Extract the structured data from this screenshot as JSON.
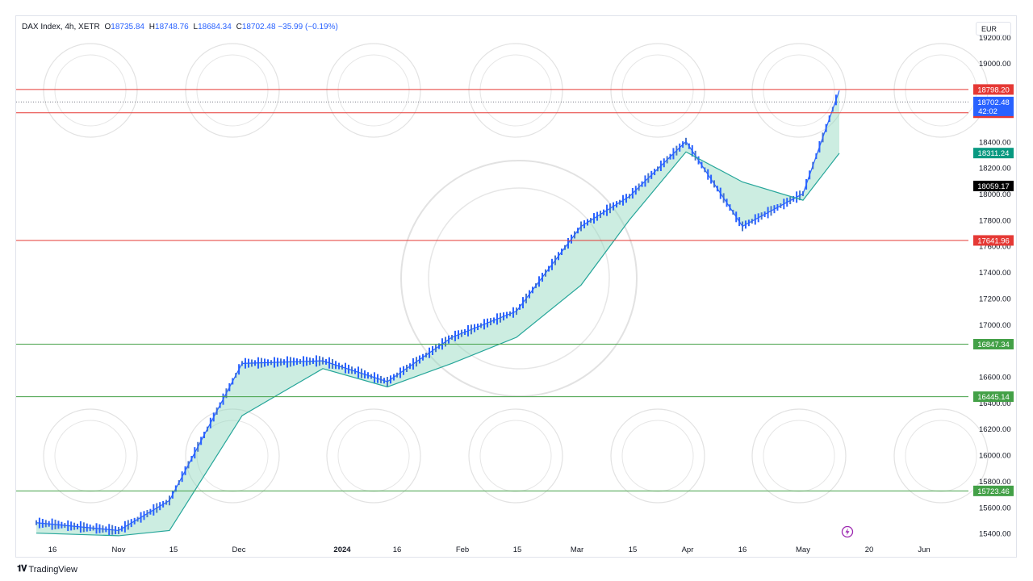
{
  "legend": {
    "symbol": "DAX Index, 4h, XETR",
    "open_label": "O",
    "open": "18735.84",
    "high_label": "H",
    "high": "18748.76",
    "low_label": "L",
    "low": "18684.34",
    "close_label": "C",
    "close": "18702.48",
    "change": "−35.99 (−0.19%)"
  },
  "currency": "EUR",
  "brand": "TradingView",
  "icons": {
    "tv_logo": "tradingview-logo-icon",
    "flash": "flash-icon"
  },
  "colors": {
    "up": "#2962ff",
    "down": "#4a76c8",
    "resistance": "#e53935",
    "support": "#43a047",
    "cloud_green": "#8fd6bd",
    "cloud_red": "#f6a3a3",
    "price_tag": "#2962ff",
    "dark_tag": "#000000",
    "teal_tag": "#089981"
  },
  "chart_data": {
    "type": "line",
    "title": "DAX Index, 4h, XETR",
    "ylim": [
      15330,
      19360
    ],
    "y_ticks": [
      "19200.00",
      "19000.00",
      "18400.00",
      "18200.00",
      "18000.00",
      "17800.00",
      "17600.00",
      "17400.00",
      "17200.00",
      "17000.00",
      "16600.00",
      "16400.00",
      "16200.00",
      "16000.00",
      "15800.00",
      "15600.00",
      "15400.00"
    ],
    "x_ticks": [
      "16",
      "Nov",
      "15",
      "Dec",
      "2024",
      "16",
      "Feb",
      "15",
      "Mar",
      "15",
      "Apr",
      "16",
      "May",
      "20",
      "Jun"
    ],
    "horizontal_levels": [
      {
        "label": "18798.20",
        "value": 18798.2,
        "kind": "resistance"
      },
      {
        "label": "18619.95",
        "value": 18619.95,
        "kind": "resistance"
      },
      {
        "label": "17641.96",
        "value": 17641.96,
        "kind": "resistance"
      },
      {
        "label": "16847.34",
        "value": 16847.34,
        "kind": "support"
      },
      {
        "label": "16445.14",
        "value": 16445.14,
        "kind": "support"
      },
      {
        "label": "15723.46",
        "value": 15723.46,
        "kind": "support"
      }
    ],
    "tags": [
      {
        "label": "18702.48",
        "sub": "42:02",
        "value": 18702.48,
        "kind": "price"
      },
      {
        "label": "18311.24",
        "value": 18311.24,
        "kind": "teal"
      },
      {
        "label": "18059.17",
        "value": 18059.17,
        "kind": "dark"
      }
    ],
    "series": [
      {
        "values": [
          [
            "16",
            15480
          ],
          [
            "Nov",
            15420
          ],
          [
            "15",
            15650
          ],
          [
            "Dec",
            16700
          ],
          [
            "2024",
            16720
          ],
          [
            "16",
            16560
          ],
          [
            "Feb",
            16900
          ],
          [
            "15",
            17100
          ],
          [
            "Mar",
            17750
          ],
          [
            "15",
            17980
          ],
          [
            "Apr",
            18400
          ],
          [
            "16",
            17750
          ],
          [
            "May",
            18000
          ],
          [
            "May",
            18790
          ]
        ]
      },
      {
        "values": [
          [
            "16",
            15400
          ],
          [
            "Nov",
            15380
          ],
          [
            "15",
            15420
          ],
          [
            "Dec",
            16300
          ],
          [
            "2024",
            16660
          ],
          [
            "16",
            16520
          ],
          [
            "Feb",
            16700
          ],
          [
            "15",
            16900
          ],
          [
            "Mar",
            17300
          ],
          [
            "15",
            17800
          ],
          [
            "Apr",
            18320
          ],
          [
            "16",
            18090
          ],
          [
            "May",
            17950
          ],
          [
            "May",
            18310
          ]
        ]
      }
    ]
  }
}
